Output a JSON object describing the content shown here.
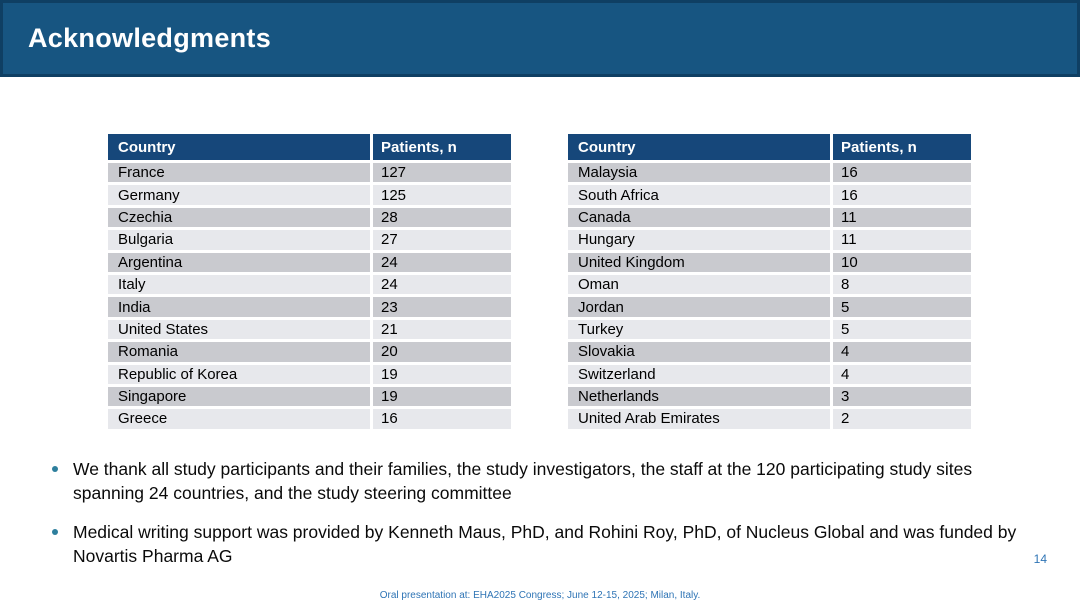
{
  "slide": {
    "title": "Acknowledgments",
    "page_number": "14",
    "footer": "Oral presentation at: EHA2025 Congress; June 12-15, 2025; Milan, Italy."
  },
  "colors": {
    "header_bar": "#175581",
    "header_bar_border": "#0f3f63",
    "table_header_bg": "#16477a",
    "row_dark": "#c9cacf",
    "row_light": "#e7e8ec",
    "bullet_dot": "#2d7f9d",
    "accent_text": "#2e74b5"
  },
  "tables": [
    {
      "headers": [
        "Country",
        "Patients, n"
      ],
      "rows": [
        [
          "France",
          "127"
        ],
        [
          "Germany",
          "125"
        ],
        [
          "Czechia",
          "28"
        ],
        [
          "Bulgaria",
          "27"
        ],
        [
          "Argentina",
          "24"
        ],
        [
          "Italy",
          "24"
        ],
        [
          "India",
          "23"
        ],
        [
          "United States",
          "21"
        ],
        [
          "Romania",
          "20"
        ],
        [
          "Republic of Korea",
          "19"
        ],
        [
          "Singapore",
          "19"
        ],
        [
          "Greece",
          "16"
        ]
      ]
    },
    {
      "headers": [
        "Country",
        "Patients, n"
      ],
      "rows": [
        [
          "Malaysia",
          "16"
        ],
        [
          "South Africa",
          "16"
        ],
        [
          "Canada",
          "11"
        ],
        [
          "Hungary",
          "11"
        ],
        [
          "United Kingdom",
          "10"
        ],
        [
          "Oman",
          "8"
        ],
        [
          "Jordan",
          "5"
        ],
        [
          "Turkey",
          "5"
        ],
        [
          "Slovakia",
          "4"
        ],
        [
          "Switzerland",
          "4"
        ],
        [
          "Netherlands",
          "3"
        ],
        [
          "United Arab Emirates",
          "2"
        ]
      ]
    }
  ],
  "bullets": [
    "We thank all study participants and their families, the study investigators, the staff at the 120 participating study sites spanning 24 countries, and the study steering committee",
    "Medical writing support was provided by Kenneth Maus, PhD, and Rohini Roy, PhD, of Nucleus Global and was funded by Novartis Pharma AG"
  ]
}
